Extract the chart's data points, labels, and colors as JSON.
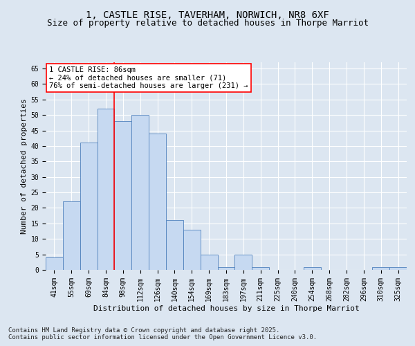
{
  "title_line1": "1, CASTLE RISE, TAVERHAM, NORWICH, NR8 6XF",
  "title_line2": "Size of property relative to detached houses in Thorpe Marriot",
  "xlabel": "Distribution of detached houses by size in Thorpe Marriot",
  "ylabel": "Number of detached properties",
  "bar_labels": [
    "41sqm",
    "55sqm",
    "69sqm",
    "84sqm",
    "98sqm",
    "112sqm",
    "126sqm",
    "140sqm",
    "154sqm",
    "169sqm",
    "183sqm",
    "197sqm",
    "211sqm",
    "225sqm",
    "240sqm",
    "254sqm",
    "268sqm",
    "282sqm",
    "296sqm",
    "310sqm",
    "325sqm"
  ],
  "bar_values": [
    4,
    22,
    41,
    52,
    48,
    50,
    44,
    16,
    13,
    5,
    1,
    5,
    1,
    0,
    0,
    1,
    0,
    0,
    0,
    1,
    1
  ],
  "bar_color": "#c6d9f1",
  "bar_edge_color": "#4f81bd",
  "background_color": "#dce6f1",
  "grid_color": "#ffffff",
  "vline_x_index": 3,
  "vline_color": "#ff0000",
  "annotation_text": "1 CASTLE RISE: 86sqm\n← 24% of detached houses are smaller (71)\n76% of semi-detached houses are larger (231) →",
  "annotation_box_color": "#ff0000",
  "annotation_fill": "#ffffff",
  "ylim": [
    0,
    67
  ],
  "yticks": [
    0,
    5,
    10,
    15,
    20,
    25,
    30,
    35,
    40,
    45,
    50,
    55,
    60,
    65
  ],
  "footnote_line1": "Contains HM Land Registry data © Crown copyright and database right 2025.",
  "footnote_line2": "Contains public sector information licensed under the Open Government Licence v3.0.",
  "title_fontsize": 10,
  "subtitle_fontsize": 9,
  "axis_label_fontsize": 8,
  "tick_fontsize": 7,
  "annotation_fontsize": 7.5,
  "footnote_fontsize": 6.5
}
